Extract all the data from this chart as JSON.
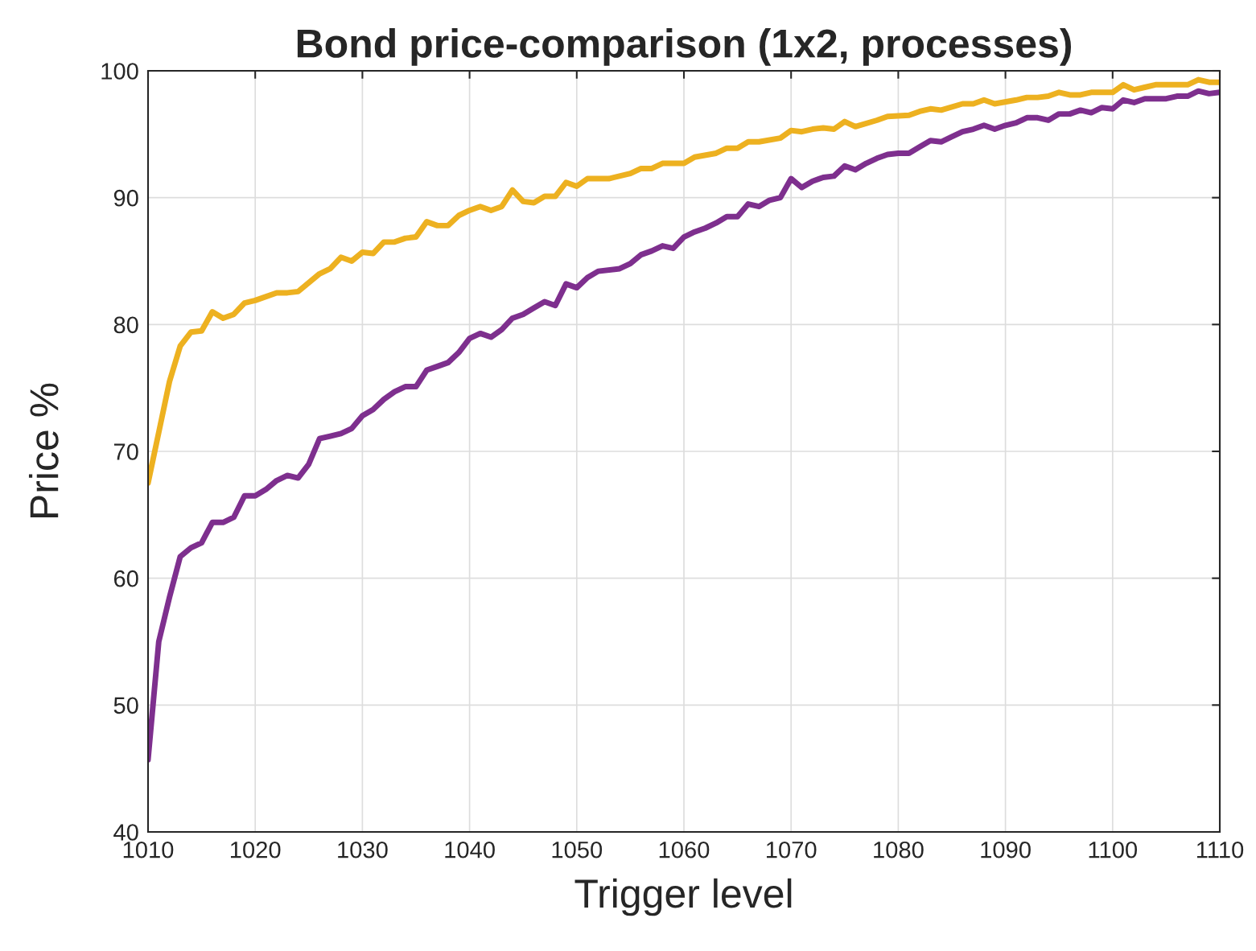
{
  "chart_data": {
    "type": "line",
    "title": "Bond price-comparison (1x2, processes)",
    "xlabel": "Trigger level",
    "ylabel": "Price %",
    "xlim": [
      1010,
      1110
    ],
    "xticks": [
      1010,
      1020,
      1030,
      1040,
      1050,
      1060,
      1070,
      1080,
      1090,
      1100,
      1110
    ],
    "ylim": [
      40,
      100
    ],
    "yticks": [
      40,
      50,
      60,
      70,
      80,
      90,
      100
    ],
    "grid": true,
    "legend": false,
    "marker": "none",
    "line_style": "solid",
    "series": [
      {
        "color": "#edb120",
        "x": [
          1010,
          1011,
          1012,
          1013,
          1014,
          1015,
          1016,
          1017,
          1018,
          1019,
          1020,
          1022,
          1023,
          1024,
          1026,
          1027,
          1028,
          1029,
          1030,
          1031,
          1032,
          1033,
          1034,
          1035,
          1036,
          1037,
          1038,
          1039,
          1040,
          1041,
          1042,
          1043,
          1044,
          1045,
          1046,
          1047,
          1048,
          1049,
          1050,
          1051,
          1053,
          1055,
          1056,
          1057,
          1058,
          1060,
          1061,
          1063,
          1064,
          1065,
          1066,
          1067,
          1069,
          1070,
          1071,
          1072,
          1073,
          1074,
          1075,
          1076,
          1078,
          1079,
          1081,
          1082,
          1083,
          1084,
          1086,
          1087,
          1088,
          1089,
          1091,
          1092,
          1093,
          1094,
          1095,
          1096,
          1097,
          1098,
          1099,
          1100,
          1101,
          1102,
          1103,
          1104,
          1106,
          1107,
          1108,
          1109,
          1110
        ],
        "values": [
          67.5,
          71.5,
          75.5,
          78.3,
          79.4,
          79.5,
          81,
          80.5,
          80.8,
          81.7,
          81.9,
          82.5,
          82.5,
          82.6,
          84,
          84.4,
          85.3,
          85,
          85.7,
          85.6,
          86.5,
          86.5,
          86.8,
          86.9,
          88.1,
          87.8,
          87.8,
          88.6,
          89,
          89.3,
          89,
          89.3,
          90.6,
          89.7,
          89.6,
          90.1,
          90.1,
          91.2,
          90.9,
          91.5,
          91.5,
          91.9,
          92.3,
          92.3,
          92.7,
          92.7,
          93.2,
          93.5,
          93.9,
          93.9,
          94.4,
          94.4,
          94.7,
          95.3,
          95.2,
          95.4,
          95.5,
          95.4,
          96,
          95.6,
          96.1,
          96.4,
          96.5,
          96.8,
          97,
          96.9,
          97.4,
          97.4,
          97.7,
          97.4,
          97.7,
          97.9,
          97.9,
          98,
          98.3,
          98.1,
          98.1,
          98.3,
          98.3,
          98.3,
          98.9,
          98.5,
          98.7,
          98.9,
          98.9,
          98.9,
          99.3,
          99.1,
          99.1
        ]
      },
      {
        "color": "#7e2f8e",
        "x": [
          1010,
          1011,
          1012,
          1013,
          1014,
          1015,
          1016,
          1017,
          1018,
          1019,
          1020,
          1021,
          1022,
          1023,
          1024,
          1025,
          1026,
          1027,
          1028,
          1029,
          1030,
          1031,
          1032,
          1033,
          1034,
          1035,
          1036,
          1037,
          1038,
          1039,
          1040,
          1041,
          1042,
          1043,
          1044,
          1045,
          1046,
          1047,
          1048,
          1049,
          1050,
          1051,
          1052,
          1054,
          1055,
          1056,
          1057,
          1058,
          1059,
          1060,
          1061,
          1062,
          1063,
          1064,
          1065,
          1066,
          1067,
          1068,
          1069,
          1070,
          1071,
          1072,
          1073,
          1074,
          1075,
          1076,
          1077,
          1078,
          1079,
          1080,
          1081,
          1082,
          1083,
          1084,
          1085,
          1086,
          1087,
          1088,
          1089,
          1090,
          1091,
          1092,
          1093,
          1094,
          1095,
          1096,
          1097,
          1098,
          1099,
          1100,
          1101,
          1102,
          1103,
          1104,
          1105,
          1106,
          1107,
          1108,
          1109,
          1110
        ],
        "values": [
          45.7,
          55,
          58.5,
          61.7,
          62.4,
          62.8,
          64.4,
          64.4,
          64.8,
          66.5,
          66.5,
          67,
          67.7,
          68.1,
          67.9,
          69,
          71,
          71.2,
          71.4,
          71.8,
          72.8,
          73.3,
          74.1,
          74.7,
          75.1,
          75.1,
          76.4,
          76.7,
          77,
          77.8,
          78.9,
          79.3,
          79,
          79.6,
          80.5,
          80.8,
          81.3,
          81.8,
          81.5,
          83.2,
          82.9,
          83.7,
          84.2,
          84.4,
          84.8,
          85.5,
          85.8,
          86.2,
          86,
          86.9,
          87.3,
          87.6,
          88,
          88.5,
          88.5,
          89.5,
          89.3,
          89.8,
          90,
          91.5,
          90.8,
          91.3,
          91.6,
          91.7,
          92.5,
          92.2,
          92.7,
          93.1,
          93.4,
          93.5,
          93.5,
          94,
          94.5,
          94.4,
          94.8,
          95.2,
          95.4,
          95.7,
          95.4,
          95.7,
          95.9,
          96.3,
          96.3,
          96.1,
          96.6,
          96.6,
          96.9,
          96.7,
          97.1,
          97,
          97.7,
          97.5,
          97.8,
          97.8,
          97.8,
          98,
          98,
          98.4,
          98.2,
          98.3
        ]
      }
    ]
  }
}
